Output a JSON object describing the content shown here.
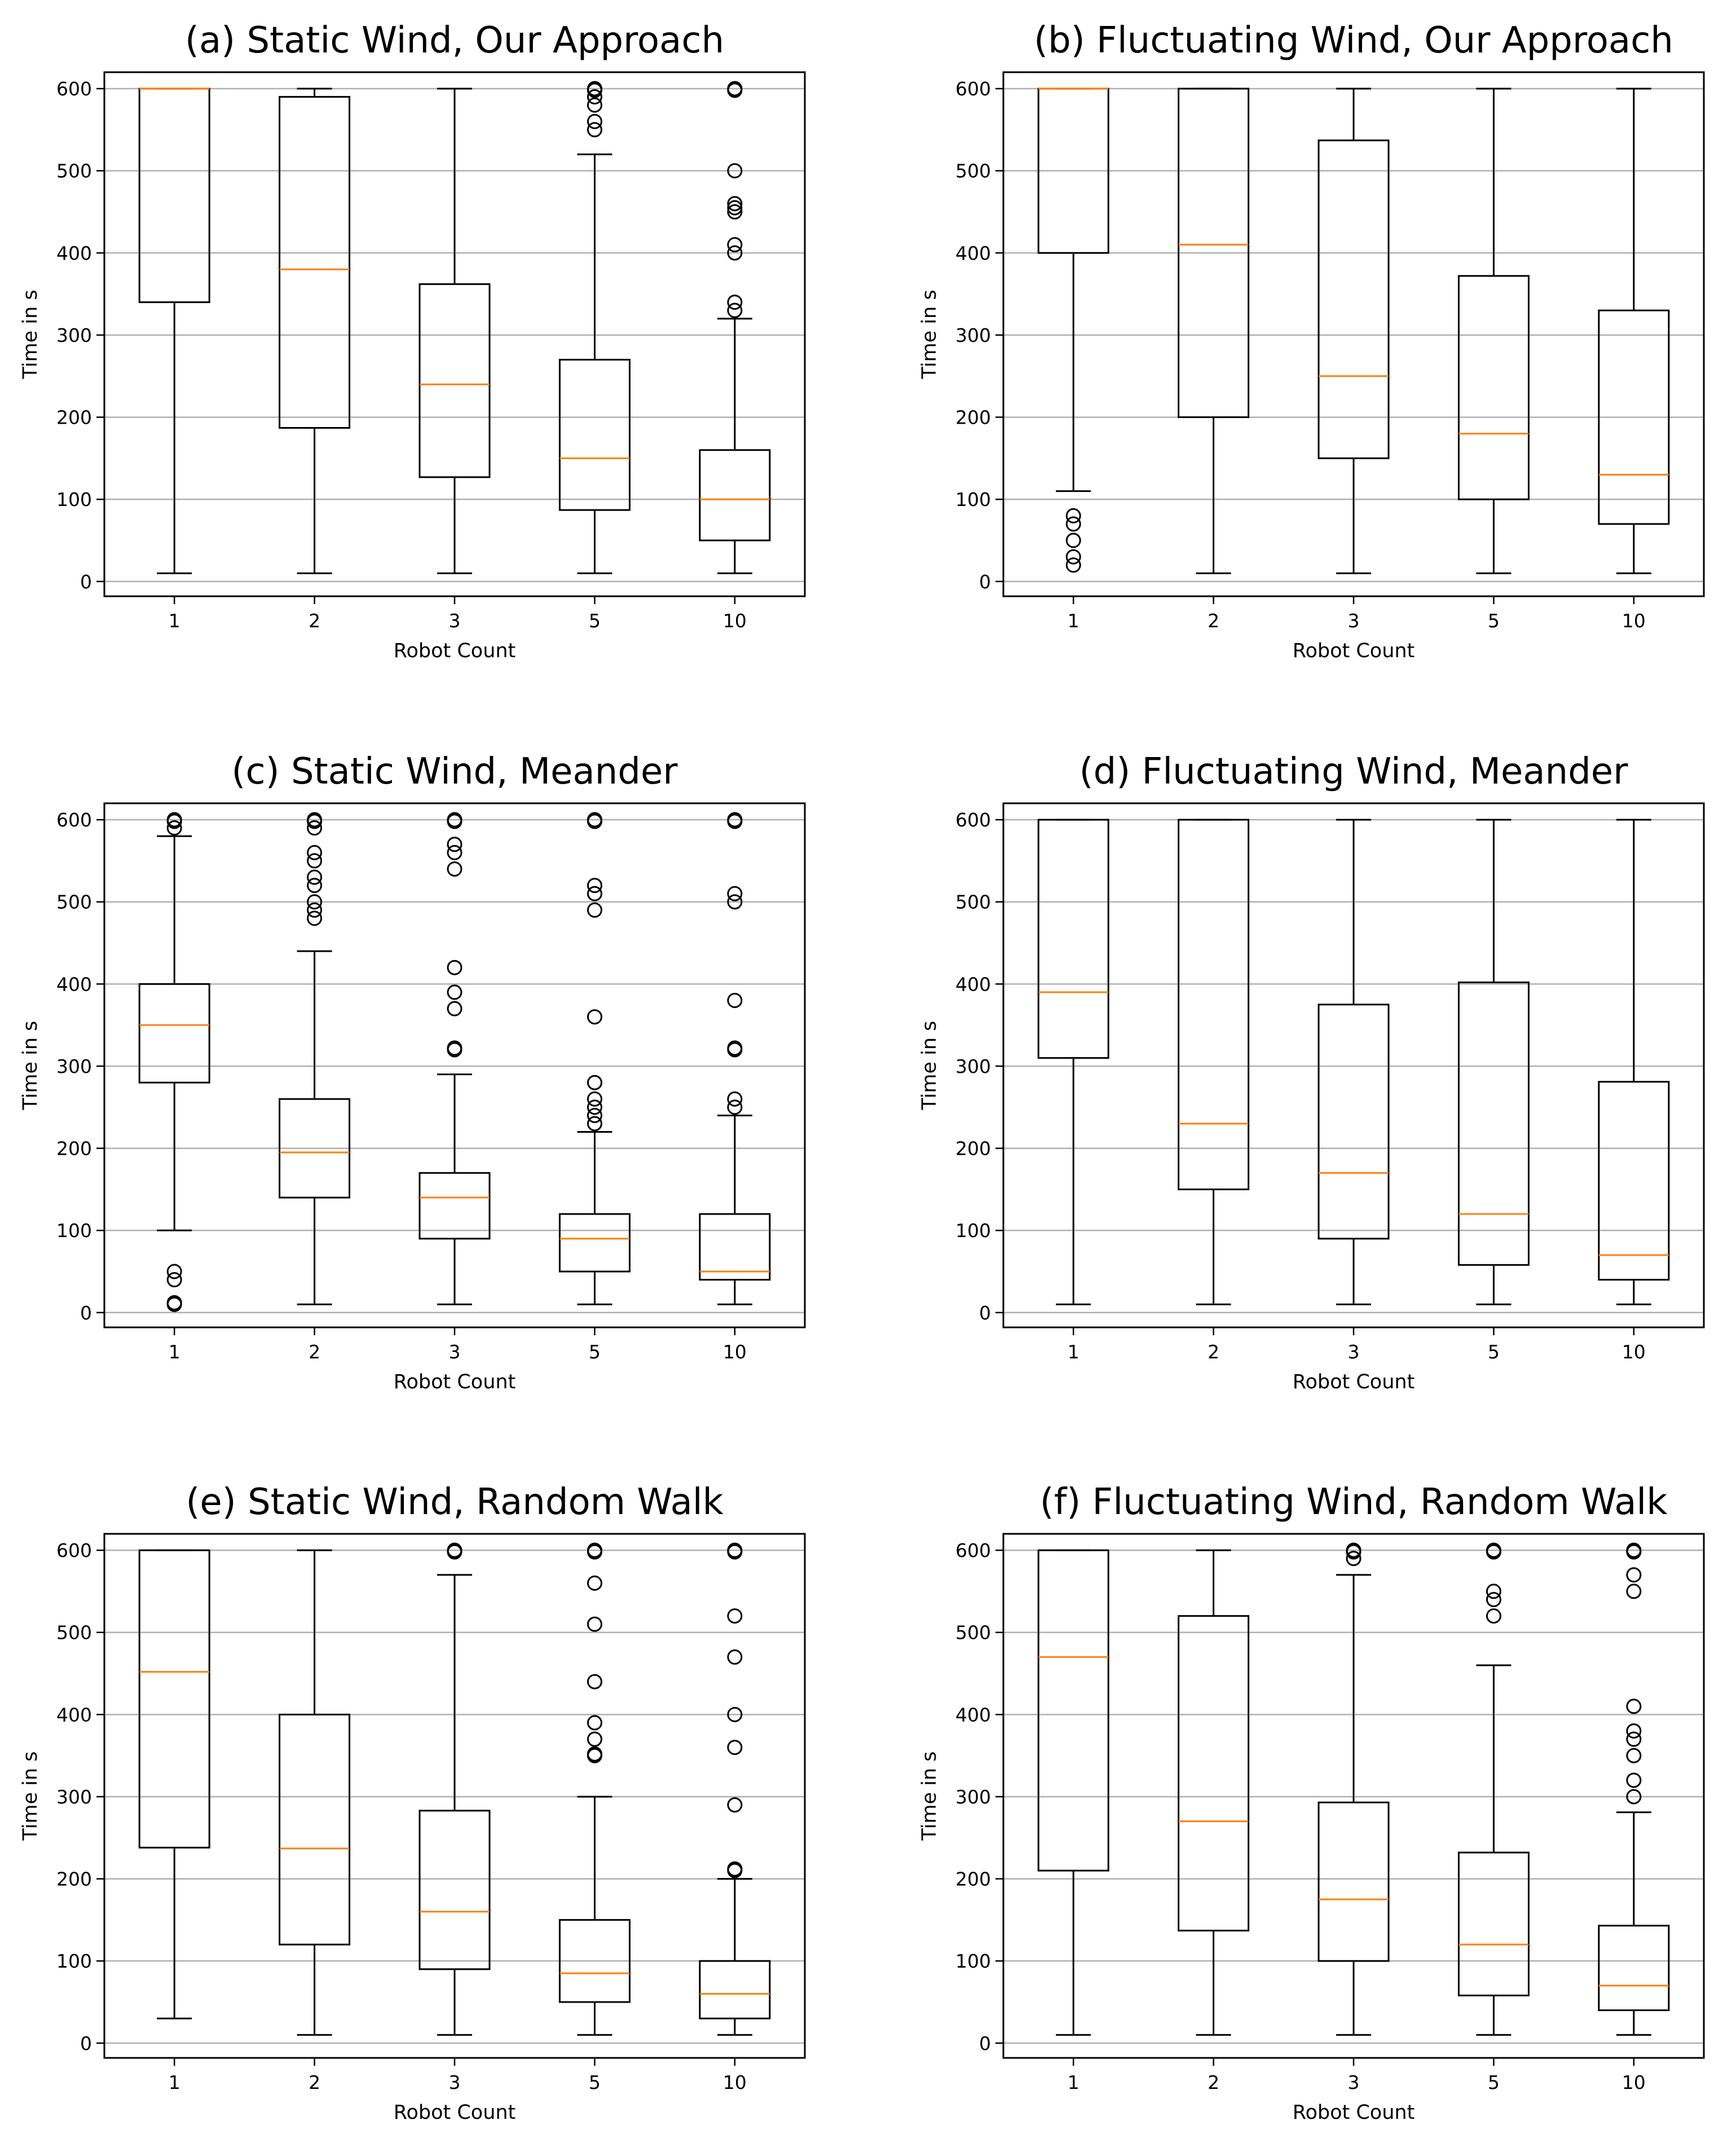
{
  "colors": {
    "box": "#000000",
    "median": "#ff7f0e",
    "grid": "#b0b0b0",
    "frame": "#000000"
  },
  "chart_data": [
    {
      "type": "box",
      "title": "(a) Static Wind, Our Approach",
      "xlabel": "Robot Count",
      "ylabel": "Time in s",
      "categories": [
        "1",
        "2",
        "3",
        "5",
        "10"
      ],
      "yticks": [
        "0",
        "100",
        "200",
        "300",
        "400",
        "500",
        "600"
      ],
      "ylim": [
        -18,
        620
      ],
      "grid": "y",
      "boxes": [
        {
          "whislo": 10,
          "q1": 340,
          "med": 600,
          "q3": 600,
          "whishi": 600,
          "fliers": []
        },
        {
          "whislo": 10,
          "q1": 187,
          "med": 380,
          "q3": 590,
          "whishi": 600,
          "fliers": []
        },
        {
          "whislo": 10,
          "q1": 127,
          "med": 240,
          "q3": 362,
          "whishi": 600,
          "fliers": []
        },
        {
          "whislo": 10,
          "q1": 87,
          "med": 150,
          "q3": 270,
          "whishi": 520,
          "fliers": [
            550,
            560,
            580,
            590,
            598,
            600
          ]
        },
        {
          "whislo": 10,
          "q1": 50,
          "med": 100,
          "q3": 160,
          "whishi": 320,
          "fliers": [
            330,
            340,
            400,
            410,
            450,
            455,
            460,
            500,
            598,
            600
          ]
        }
      ]
    },
    {
      "type": "box",
      "title": "(b) Fluctuating Wind, Our Approach",
      "xlabel": "Robot Count",
      "ylabel": "Time in s",
      "categories": [
        "1",
        "2",
        "3",
        "5",
        "10"
      ],
      "yticks": [
        "0",
        "100",
        "200",
        "300",
        "400",
        "500",
        "600"
      ],
      "ylim": [
        -18,
        620
      ],
      "grid": "y",
      "boxes": [
        {
          "whislo": 110,
          "q1": 400,
          "med": 600,
          "q3": 600,
          "whishi": 600,
          "fliers": [
            20,
            30,
            50,
            70,
            80
          ]
        },
        {
          "whislo": 10,
          "q1": 200,
          "med": 410,
          "q3": 600,
          "whishi": 600,
          "fliers": []
        },
        {
          "whislo": 10,
          "q1": 150,
          "med": 250,
          "q3": 537,
          "whishi": 600,
          "fliers": []
        },
        {
          "whislo": 10,
          "q1": 100,
          "med": 180,
          "q3": 372,
          "whishi": 600,
          "fliers": []
        },
        {
          "whislo": 10,
          "q1": 70,
          "med": 130,
          "q3": 330,
          "whishi": 600,
          "fliers": []
        }
      ]
    },
    {
      "type": "box",
      "title": "(c) Static Wind, Meander",
      "xlabel": "Robot Count",
      "ylabel": "Time in s",
      "categories": [
        "1",
        "2",
        "3",
        "5",
        "10"
      ],
      "yticks": [
        "0",
        "100",
        "200",
        "300",
        "400",
        "500",
        "600"
      ],
      "ylim": [
        -18,
        620
      ],
      "grid": "y",
      "boxes": [
        {
          "whislo": 100,
          "q1": 280,
          "med": 350,
          "q3": 400,
          "whishi": 580,
          "fliers": [
            10,
            12,
            40,
            50,
            590,
            598,
            600
          ]
        },
        {
          "whislo": 10,
          "q1": 140,
          "med": 195,
          "q3": 260,
          "whishi": 440,
          "fliers": [
            480,
            490,
            500,
            520,
            530,
            550,
            560,
            590,
            598,
            600
          ]
        },
        {
          "whislo": 10,
          "q1": 90,
          "med": 140,
          "q3": 170,
          "whishi": 290,
          "fliers": [
            320,
            322,
            370,
            390,
            420,
            540,
            560,
            570,
            598,
            600
          ]
        },
        {
          "whislo": 10,
          "q1": 50,
          "med": 90,
          "q3": 120,
          "whishi": 220,
          "fliers": [
            230,
            240,
            250,
            260,
            280,
            360,
            490,
            510,
            520,
            598,
            600
          ]
        },
        {
          "whislo": 10,
          "q1": 40,
          "med": 50,
          "q3": 120,
          "whishi": 240,
          "fliers": [
            250,
            260,
            320,
            322,
            380,
            500,
            510,
            598,
            600
          ]
        }
      ]
    },
    {
      "type": "box",
      "title": "(d) Fluctuating Wind, Meander",
      "xlabel": "Robot Count",
      "ylabel": "Time in s",
      "categories": [
        "1",
        "2",
        "3",
        "5",
        "10"
      ],
      "yticks": [
        "0",
        "100",
        "200",
        "300",
        "400",
        "500",
        "600"
      ],
      "ylim": [
        -18,
        620
      ],
      "grid": "y",
      "boxes": [
        {
          "whislo": 10,
          "q1": 310,
          "med": 390,
          "q3": 600,
          "whishi": 600,
          "fliers": []
        },
        {
          "whislo": 10,
          "q1": 150,
          "med": 230,
          "q3": 600,
          "whishi": 600,
          "fliers": []
        },
        {
          "whislo": 10,
          "q1": 90,
          "med": 170,
          "q3": 375,
          "whishi": 600,
          "fliers": []
        },
        {
          "whislo": 10,
          "q1": 58,
          "med": 120,
          "q3": 402,
          "whishi": 600,
          "fliers": []
        },
        {
          "whislo": 10,
          "q1": 40,
          "med": 70,
          "q3": 281,
          "whishi": 600,
          "fliers": []
        }
      ]
    },
    {
      "type": "box",
      "title": "(e) Static Wind, Random Walk",
      "xlabel": "Robot Count",
      "ylabel": "Time in s",
      "categories": [
        "1",
        "2",
        "3",
        "5",
        "10"
      ],
      "yticks": [
        "0",
        "100",
        "200",
        "300",
        "400",
        "500",
        "600"
      ],
      "ylim": [
        -18,
        620
      ],
      "grid": "y",
      "boxes": [
        {
          "whislo": 30,
          "q1": 238,
          "med": 452,
          "q3": 600,
          "whishi": 600,
          "fliers": []
        },
        {
          "whislo": 10,
          "q1": 120,
          "med": 237,
          "q3": 400,
          "whishi": 600,
          "fliers": []
        },
        {
          "whislo": 10,
          "q1": 90,
          "med": 160,
          "q3": 283,
          "whishi": 570,
          "fliers": [
            598,
            600
          ]
        },
        {
          "whislo": 10,
          "q1": 50,
          "med": 85,
          "q3": 150,
          "whishi": 300,
          "fliers": [
            350,
            352,
            370,
            390,
            440,
            510,
            560,
            598,
            600
          ]
        },
        {
          "whislo": 10,
          "q1": 30,
          "med": 60,
          "q3": 100,
          "whishi": 200,
          "fliers": [
            210,
            212,
            290,
            360,
            400,
            470,
            520,
            598,
            600
          ]
        }
      ]
    },
    {
      "type": "box",
      "title": "(f) Fluctuating Wind, Random Walk",
      "xlabel": "Robot Count",
      "ylabel": "Time in s",
      "categories": [
        "1",
        "2",
        "3",
        "5",
        "10"
      ],
      "yticks": [
        "0",
        "100",
        "200",
        "300",
        "400",
        "500",
        "600"
      ],
      "ylim": [
        -18,
        620
      ],
      "grid": "y",
      "boxes": [
        {
          "whislo": 10,
          "q1": 210,
          "med": 470,
          "q3": 600,
          "whishi": 600,
          "fliers": []
        },
        {
          "whislo": 10,
          "q1": 137,
          "med": 270,
          "q3": 520,
          "whishi": 600,
          "fliers": []
        },
        {
          "whislo": 10,
          "q1": 100,
          "med": 175,
          "q3": 293,
          "whishi": 570,
          "fliers": [
            590,
            598,
            600
          ]
        },
        {
          "whislo": 10,
          "q1": 58,
          "med": 120,
          "q3": 232,
          "whishi": 460,
          "fliers": [
            520,
            540,
            550,
            598,
            600
          ]
        },
        {
          "whislo": 10,
          "q1": 40,
          "med": 70,
          "q3": 143,
          "whishi": 281,
          "fliers": [
            300,
            320,
            350,
            370,
            380,
            410,
            550,
            570,
            598,
            600
          ]
        }
      ]
    }
  ]
}
